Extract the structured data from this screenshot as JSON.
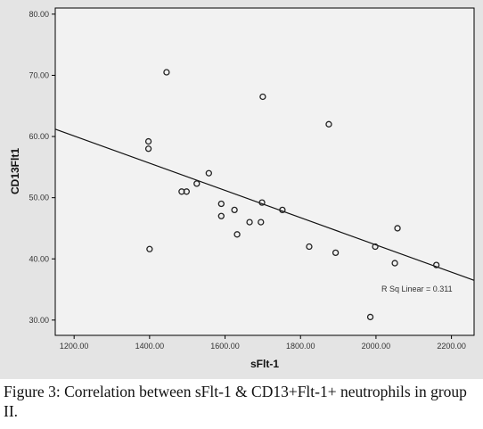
{
  "chart_data": {
    "type": "scatter",
    "xlabel": "sFlt-1",
    "ylabel": "CD13Flt1",
    "xlim": [
      1150,
      2260
    ],
    "ylim": [
      27.5,
      81
    ],
    "x_ticks": [
      1200,
      1400,
      1600,
      1800,
      2000,
      2200
    ],
    "x_tick_labels": [
      "1200.00",
      "1400.00",
      "1600.00",
      "1800.00",
      "2000.00",
      "2200.00"
    ],
    "y_ticks": [
      30,
      40,
      50,
      60,
      70,
      80
    ],
    "y_tick_labels": [
      "30.00",
      "40.00",
      "50.00",
      "60.00",
      "70.00",
      "80.00"
    ],
    "grid": false,
    "points": [
      {
        "x": 1445,
        "y": 70.5
      },
      {
        "x": 1700,
        "y": 66.5
      },
      {
        "x": 1875,
        "y": 62.0
      },
      {
        "x": 1397,
        "y": 59.2
      },
      {
        "x": 1397,
        "y": 58.0
      },
      {
        "x": 1557,
        "y": 54.0
      },
      {
        "x": 1525,
        "y": 52.3
      },
      {
        "x": 1485,
        "y": 51.0
      },
      {
        "x": 1498,
        "y": 51.0
      },
      {
        "x": 1698,
        "y": 49.2
      },
      {
        "x": 1590,
        "y": 49.0
      },
      {
        "x": 1625,
        "y": 48.0
      },
      {
        "x": 1752,
        "y": 48.0
      },
      {
        "x": 1590,
        "y": 47.0
      },
      {
        "x": 1665,
        "y": 46.0
      },
      {
        "x": 1695,
        "y": 46.0
      },
      {
        "x": 2057,
        "y": 45.0
      },
      {
        "x": 1632,
        "y": 44.0
      },
      {
        "x": 1823,
        "y": 42.0
      },
      {
        "x": 1998,
        "y": 42.0
      },
      {
        "x": 1400,
        "y": 41.6
      },
      {
        "x": 1893,
        "y": 41.0
      },
      {
        "x": 2050,
        "y": 39.3
      },
      {
        "x": 2160,
        "y": 39.0
      },
      {
        "x": 1985,
        "y": 30.5
      }
    ],
    "fit_line": {
      "x": [
        1150,
        2260
      ],
      "y": [
        61.2,
        36.5
      ]
    },
    "annotation": "R Sq Linear = 0.311"
  },
  "caption": {
    "label": "Figure 3:",
    "text": " Correlation between sFlt-1 & CD13+Flt-1+ neutrophils in group II."
  },
  "colors": {
    "frame_bg": "#e4e4e4",
    "plot_bg": "#f2f2f2",
    "marker_stroke": "#222222",
    "fit_line": "#111111"
  }
}
